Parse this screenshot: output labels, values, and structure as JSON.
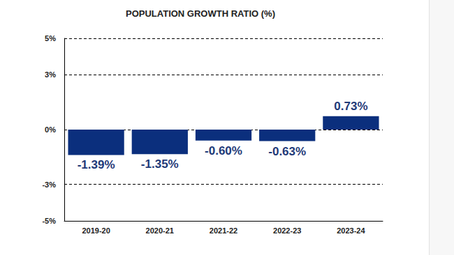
{
  "chart_data": {
    "type": "bar",
    "title": "POPULATION GROWTH RATIO (%)",
    "categories": [
      "2019-20",
      "2020-21",
      "2021-22",
      "2022-23",
      "2023-24"
    ],
    "values": [
      -1.39,
      -1.35,
      -0.6,
      -0.63,
      0.73
    ],
    "value_labels": [
      "-1.39%",
      "-1.35%",
      "-0.60%",
      "-0.63%",
      "0.73%"
    ],
    "color": "#0b2f7d",
    "ylim": [
      -5,
      5
    ],
    "yticks": [
      {
        "value": -5,
        "label": "-5%"
      },
      {
        "value": -3,
        "label": "-3%"
      },
      {
        "value": 0,
        "label": "0%"
      },
      {
        "value": 3,
        "label": "3%"
      },
      {
        "value": 5,
        "label": "5%"
      }
    ],
    "grid": true,
    "data_labels": true
  }
}
